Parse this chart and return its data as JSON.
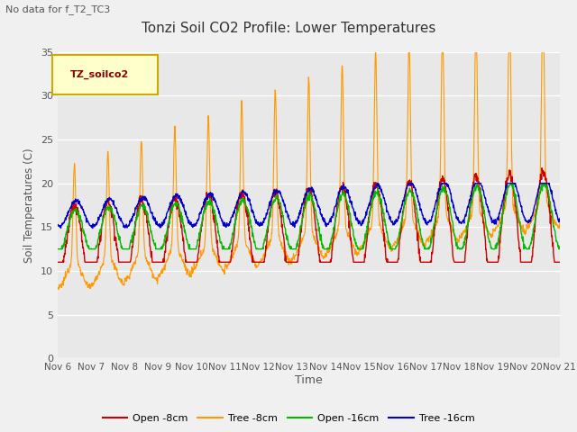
{
  "title": "Tonzi Soil CO2 Profile: Lower Temperatures",
  "subtitle": "No data for f_T2_TC3",
  "ylabel": "Soil Temperatures (C)",
  "xlabel": "Time",
  "ylim": [
    0,
    35
  ],
  "yticks": [
    0,
    5,
    10,
    15,
    20,
    25,
    30,
    35
  ],
  "x_labels": [
    "Nov 6",
    "Nov 7",
    "Nov 8",
    "Nov 9",
    "Nov 10",
    "Nov 11",
    "Nov 12",
    "Nov 13",
    "Nov 14",
    "Nov 15",
    "Nov 16",
    "Nov 17",
    "Nov 18",
    "Nov 19",
    "Nov 20",
    "Nov 21"
  ],
  "legend_box_label": "TZ_soilco2",
  "legend_entries": [
    "Open -8cm",
    "Tree -8cm",
    "Open -16cm",
    "Tree -16cm"
  ],
  "legend_colors": [
    "#cc0000",
    "#ff9900",
    "#00aa00",
    "#0000cc"
  ],
  "fig_bg_color": "#f0f0f0",
  "plot_bg_color": "#e8e8e8",
  "grid_color": "#ffffff",
  "n_days": 15,
  "pts_per_day": 96
}
